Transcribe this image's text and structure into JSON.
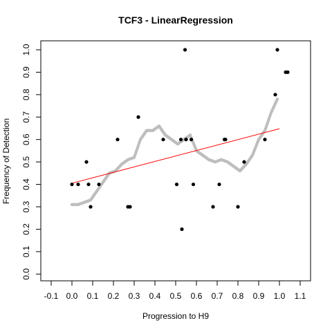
{
  "chart_data": {
    "type": "scatter",
    "title": "TCF3 - LinearRegression",
    "xlabel": "Progression to H9",
    "ylabel": "Frequency of Detection",
    "xlim": [
      -0.15,
      1.15
    ],
    "ylim": [
      -0.03,
      1.04
    ],
    "x_ticks": [
      "-0.1",
      "0.0",
      "0.1",
      "0.2",
      "0.3",
      "0.4",
      "0.5",
      "0.6",
      "0.7",
      "0.8",
      "0.9",
      "1.0",
      "1.1"
    ],
    "y_ticks": [
      "0.0",
      "0.1",
      "0.2",
      "0.3",
      "0.4",
      "0.5",
      "0.6",
      "0.7",
      "0.8",
      "0.9",
      "1.0"
    ],
    "grid": false,
    "colors": {
      "observed": "#000000",
      "smoothed": "#bebebe",
      "regression": "#ff0000"
    },
    "series": [
      {
        "type": "scatter",
        "color": "#000000",
        "x": [
          0.0,
          0.03,
          0.07,
          0.08,
          0.09,
          0.13,
          0.22,
          0.27,
          0.28,
          0.32,
          0.44,
          0.505,
          0.525,
          0.53,
          0.545,
          0.55,
          0.575,
          0.585,
          0.68,
          0.71,
          0.735,
          0.74,
          0.8,
          0.83,
          0.93,
          0.98,
          0.99,
          1.03,
          1.04
        ],
        "y": [
          0.4,
          0.4,
          0.5,
          0.4,
          0.3,
          0.4,
          0.6,
          0.3,
          0.3,
          0.7,
          0.6,
          0.4,
          0.6,
          0.2,
          1.0,
          0.6,
          0.6,
          0.4,
          0.3,
          0.4,
          0.6,
          0.6,
          0.3,
          0.5,
          0.6,
          0.8,
          1.0,
          0.9,
          0.9
        ]
      },
      {
        "type": "line-points",
        "color": "#bebebe",
        "x": [
          0.0,
          0.03,
          0.06,
          0.09,
          0.12,
          0.15,
          0.18,
          0.21,
          0.24,
          0.27,
          0.3,
          0.33,
          0.36,
          0.39,
          0.42,
          0.45,
          0.48,
          0.51,
          0.54,
          0.57,
          0.6,
          0.63,
          0.66,
          0.69,
          0.72,
          0.75,
          0.78,
          0.81,
          0.84,
          0.87,
          0.9,
          0.93,
          0.96,
          0.99
        ],
        "y": [
          0.31,
          0.31,
          0.32,
          0.33,
          0.37,
          0.41,
          0.45,
          0.46,
          0.49,
          0.51,
          0.52,
          0.6,
          0.64,
          0.64,
          0.66,
          0.62,
          0.6,
          0.58,
          0.6,
          0.62,
          0.55,
          0.53,
          0.51,
          0.5,
          0.51,
          0.5,
          0.48,
          0.46,
          0.49,
          0.53,
          0.6,
          0.64,
          0.72,
          0.78
        ]
      },
      {
        "type": "line",
        "color": "#ff0000",
        "x": [
          0.0,
          1.0
        ],
        "y": [
          0.405,
          0.648
        ]
      }
    ]
  }
}
